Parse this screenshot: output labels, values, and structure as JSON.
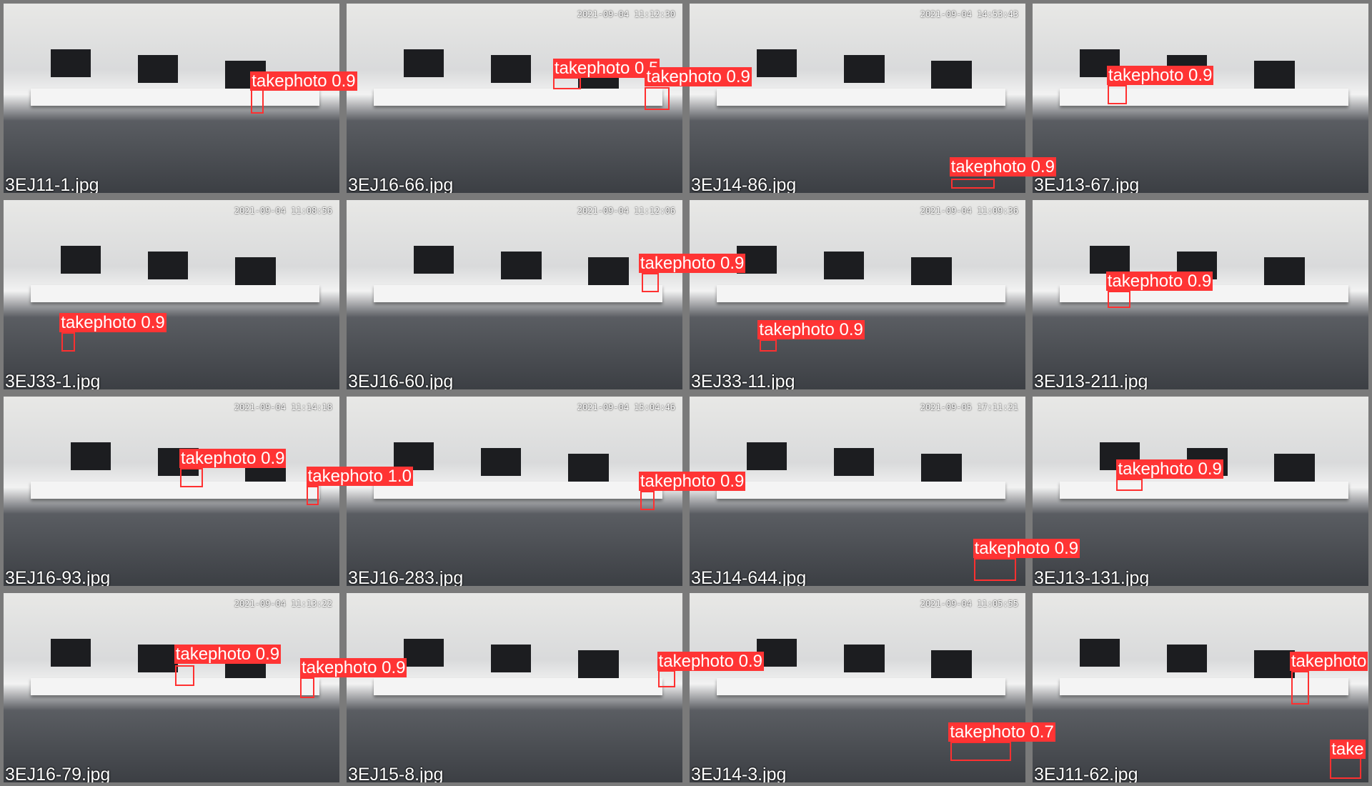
{
  "tiles": [
    {
      "filename": "3EJ11-1.jpg",
      "detections": [
        {
          "label": "takephoto 0.9"
        }
      ]
    },
    {
      "filename": "3EJ16-66.jpg",
      "timestamp": "2021-09-04 11:12:30",
      "detections": [
        {
          "label": "takephoto 0.5"
        },
        {
          "label": "takephoto 0.9"
        }
      ]
    },
    {
      "filename": "3EJ14-86.jpg",
      "timestamp": "2021-09-04 14:53:43",
      "detections": [
        {
          "label": "takephoto 0.9"
        }
      ]
    },
    {
      "filename": "3EJ13-67.jpg",
      "detections": [
        {
          "label": "takephoto 0.9"
        }
      ]
    },
    {
      "filename": "3EJ33-1.jpg",
      "timestamp": "2021-09-04 11:08:56",
      "detections": [
        {
          "label": "takephoto 0.9"
        }
      ]
    },
    {
      "filename": "3EJ16-60.jpg",
      "timestamp": "2021-09-04 11:12:06",
      "detections": [
        {
          "label": "takephoto 0.9"
        }
      ]
    },
    {
      "filename": "3EJ33-11.jpg",
      "timestamp": "2021-09-04 11:09:36",
      "detections": [
        {
          "label": "takephoto 0.9"
        }
      ]
    },
    {
      "filename": "3EJ13-211.jpg",
      "detections": [
        {
          "label": "takephoto 0.9"
        }
      ]
    },
    {
      "filename": "3EJ16-93.jpg",
      "timestamp": "2021-09-04 11:14:18",
      "detections": [
        {
          "label": "takephoto 0.9"
        },
        {
          "label": "takephoto 1.0"
        }
      ]
    },
    {
      "filename": "3EJ16-283.jpg",
      "timestamp": "2021-09-04 15:04:46",
      "detections": [
        {
          "label": "takephoto 0.9"
        }
      ]
    },
    {
      "filename": "3EJ14-644.jpg",
      "timestamp": "2021-09-05 17:11:21",
      "detections": [
        {
          "label": "takephoto 0.9"
        }
      ]
    },
    {
      "filename": "3EJ13-131.jpg",
      "detections": [
        {
          "label": "takephoto 0.9"
        }
      ]
    },
    {
      "filename": "3EJ16-79.jpg",
      "timestamp": "2021-09-04 11:13:22",
      "detections": [
        {
          "label": "takephoto 0.9"
        },
        {
          "label": "takephoto 0.9"
        }
      ]
    },
    {
      "filename": "3EJ15-8.jpg",
      "detections": [
        {
          "label": "takephoto 0.9"
        }
      ]
    },
    {
      "filename": "3EJ14-3.jpg",
      "timestamp": "2021-09-04 11:05:55",
      "detections": [
        {
          "label": "takephoto 0.7"
        }
      ]
    },
    {
      "filename": "3EJ11-62.jpg",
      "detections": [
        {
          "label": "takephoto"
        },
        {
          "label": "take"
        }
      ]
    }
  ]
}
